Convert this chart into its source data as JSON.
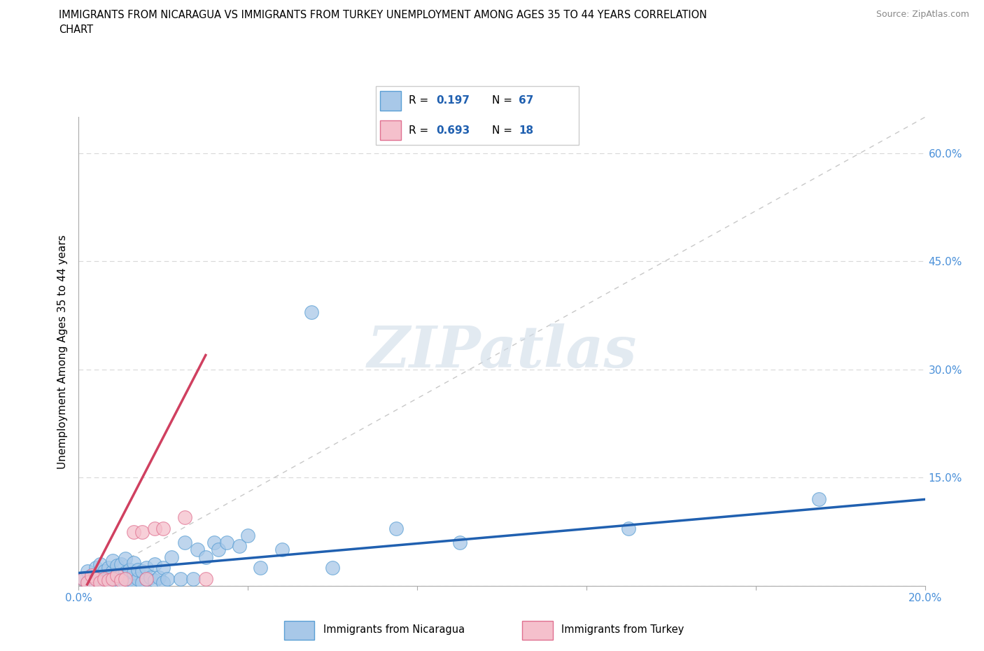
{
  "title": "IMMIGRANTS FROM NICARAGUA VS IMMIGRANTS FROM TURKEY UNEMPLOYMENT AMONG AGES 35 TO 44 YEARS CORRELATION\nCHART",
  "source": "Source: ZipAtlas.com",
  "ylabel": "Unemployment Among Ages 35 to 44 years",
  "xlim": [
    0.0,
    0.2
  ],
  "ylim": [
    0.0,
    0.65
  ],
  "x_tick_positions": [
    0.0,
    0.04,
    0.08,
    0.12,
    0.16,
    0.2
  ],
  "x_tick_labels": [
    "0.0%",
    "",
    "",
    "",
    "",
    "20.0%"
  ],
  "y_tick_positions": [
    0.0,
    0.15,
    0.3,
    0.45,
    0.6
  ],
  "y_tick_labels": [
    "",
    "15.0%",
    "30.0%",
    "45.0%",
    "60.0%"
  ],
  "nicaragua_face_color": "#a8c8e8",
  "nicaragua_edge_color": "#5a9fd4",
  "turkey_face_color": "#f5c0cc",
  "turkey_edge_color": "#e07090",
  "nicaragua_line_color": "#2060b0",
  "turkey_line_color": "#d04060",
  "diagonal_color": "#c8c8c8",
  "R_nicaragua": 0.197,
  "N_nicaragua": 67,
  "R_turkey": 0.693,
  "N_turkey": 18,
  "watermark": "ZIPatlas",
  "nicaragua_scatter_x": [
    0.001,
    0.002,
    0.002,
    0.003,
    0.003,
    0.004,
    0.004,
    0.004,
    0.005,
    0.005,
    0.005,
    0.006,
    0.006,
    0.006,
    0.007,
    0.007,
    0.007,
    0.008,
    0.008,
    0.008,
    0.008,
    0.009,
    0.009,
    0.009,
    0.01,
    0.01,
    0.01,
    0.011,
    0.011,
    0.011,
    0.012,
    0.012,
    0.013,
    0.013,
    0.013,
    0.014,
    0.014,
    0.015,
    0.015,
    0.016,
    0.016,
    0.017,
    0.018,
    0.018,
    0.019,
    0.02,
    0.02,
    0.021,
    0.022,
    0.024,
    0.025,
    0.027,
    0.028,
    0.03,
    0.032,
    0.033,
    0.035,
    0.038,
    0.04,
    0.043,
    0.048,
    0.055,
    0.06,
    0.075,
    0.09,
    0.13,
    0.175
  ],
  "nicaragua_scatter_y": [
    0.01,
    0.005,
    0.02,
    0.005,
    0.015,
    0.003,
    0.012,
    0.025,
    0.005,
    0.015,
    0.03,
    0.003,
    0.01,
    0.02,
    0.005,
    0.012,
    0.025,
    0.003,
    0.01,
    0.02,
    0.035,
    0.005,
    0.015,
    0.028,
    0.005,
    0.015,
    0.03,
    0.005,
    0.018,
    0.038,
    0.01,
    0.022,
    0.005,
    0.018,
    0.032,
    0.01,
    0.022,
    0.005,
    0.02,
    0.01,
    0.025,
    0.012,
    0.008,
    0.03,
    0.012,
    0.005,
    0.025,
    0.01,
    0.04,
    0.01,
    0.06,
    0.01,
    0.05,
    0.04,
    0.06,
    0.05,
    0.06,
    0.055,
    0.07,
    0.025,
    0.05,
    0.38,
    0.025,
    0.08,
    0.06,
    0.08,
    0.12
  ],
  "turkey_scatter_x": [
    0.001,
    0.002,
    0.003,
    0.004,
    0.005,
    0.006,
    0.007,
    0.008,
    0.009,
    0.01,
    0.011,
    0.013,
    0.015,
    0.016,
    0.018,
    0.02,
    0.025,
    0.03
  ],
  "turkey_scatter_y": [
    0.01,
    0.005,
    0.015,
    0.01,
    0.005,
    0.01,
    0.008,
    0.01,
    0.015,
    0.008,
    0.01,
    0.075,
    0.075,
    0.01,
    0.08,
    0.08,
    0.095,
    0.01
  ],
  "nic_line_x": [
    0.0,
    0.2
  ],
  "nic_line_y": [
    0.018,
    0.12
  ],
  "tur_line_x": [
    0.002,
    0.03
  ],
  "tur_line_y": [
    0.002,
    0.32
  ]
}
